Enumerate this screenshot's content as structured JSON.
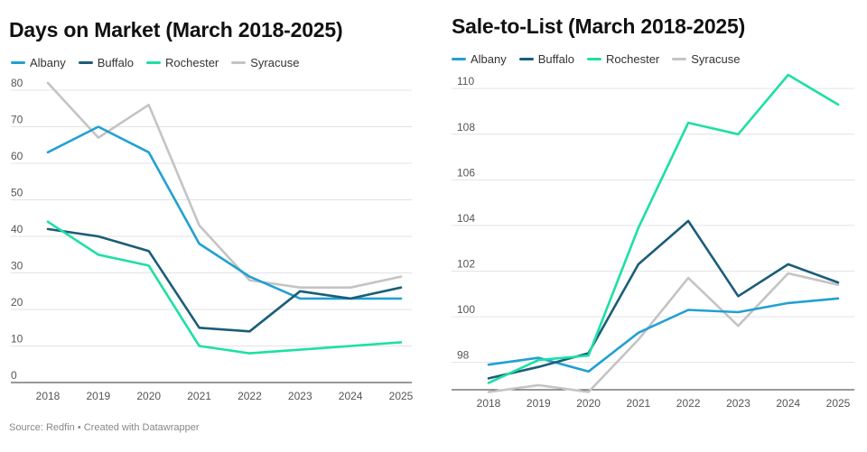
{
  "footer": {
    "source": "Source: Redfin • Created with Datawrapper"
  },
  "colors": {
    "Albany": "#22a0d3",
    "Buffalo": "#1b5d78",
    "Rochester": "#1ce0a4",
    "Syracuse": "#c4c4c4",
    "grid": "#e3e3e3",
    "baseline": "#333333"
  },
  "chart_data": [
    {
      "type": "line",
      "title": "Days on Market (March 2018-2025)",
      "xlabel": "",
      "ylabel": "",
      "x": [
        "2018",
        "2019",
        "2020",
        "2021",
        "2022",
        "2023",
        "2024",
        "2025"
      ],
      "ylim": [
        0,
        80
      ],
      "yticks": [
        0,
        10,
        20,
        30,
        40,
        50,
        60,
        70,
        80
      ],
      "grid": true,
      "legend": "top-left",
      "series": [
        {
          "name": "Albany",
          "values": [
            63,
            70,
            63,
            38,
            29,
            23,
            23,
            23
          ]
        },
        {
          "name": "Buffalo",
          "values": [
            42,
            40,
            36,
            15,
            14,
            25,
            23,
            26
          ]
        },
        {
          "name": "Rochester",
          "values": [
            44,
            35,
            32,
            10,
            8,
            9,
            10,
            11
          ]
        },
        {
          "name": "Syracuse",
          "values": [
            82,
            67,
            76,
            43,
            28,
            26,
            26,
            29
          ]
        }
      ]
    },
    {
      "type": "line",
      "title": "Sale-to-List (March 2018-2025)",
      "xlabel": "",
      "ylabel": "",
      "x": [
        "2018",
        "2019",
        "2020",
        "2021",
        "2022",
        "2023",
        "2024",
        "2025"
      ],
      "ylim": [
        96.8,
        110.6
      ],
      "yticks": [
        98,
        100,
        102,
        104,
        106,
        108,
        110
      ],
      "grid": true,
      "legend": "top-left",
      "series": [
        {
          "name": "Albany",
          "values": [
            97.9,
            98.2,
            97.6,
            99.3,
            100.3,
            100.2,
            100.6,
            100.8
          ]
        },
        {
          "name": "Buffalo",
          "values": [
            97.3,
            97.8,
            98.4,
            102.3,
            104.2,
            100.9,
            102.3,
            101.5
          ]
        },
        {
          "name": "Rochester",
          "values": [
            97.1,
            98.1,
            98.3,
            103.9,
            108.5,
            108.0,
            110.6,
            109.3
          ]
        },
        {
          "name": "Syracuse",
          "values": [
            96.7,
            97.0,
            96.7,
            99.0,
            101.7,
            99.6,
            101.9,
            101.4
          ]
        }
      ]
    }
  ]
}
